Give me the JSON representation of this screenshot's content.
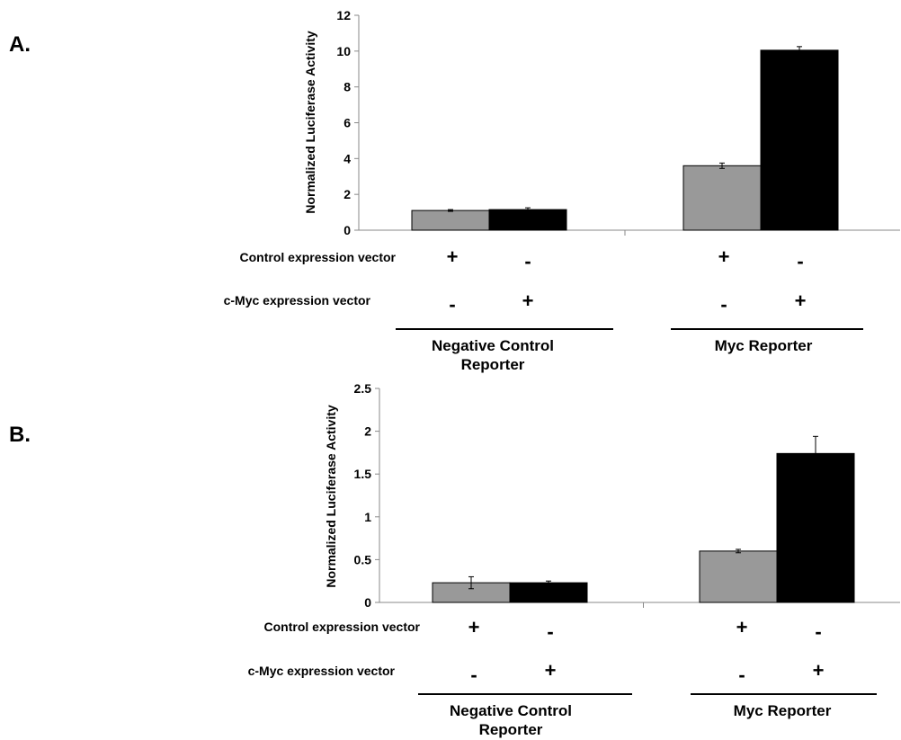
{
  "panels": [
    {
      "label": "A.",
      "ylabel": "Normalized Luciferase Activity",
      "row_labels": [
        "Control expression vector",
        "c-Myc expression vector"
      ],
      "signs": [
        [
          "+",
          "-",
          "+",
          "-"
        ],
        [
          "-",
          "+",
          "-",
          "+"
        ]
      ],
      "group_labels": [
        [
          "Negative Control",
          "Reporter"
        ],
        [
          "Myc Reporter"
        ]
      ]
    },
    {
      "label": "B.",
      "ylabel": "Normalized Luciferase Activity",
      "row_labels": [
        "Control expression vector",
        "c-Myc expression vector"
      ],
      "signs": [
        [
          "+",
          "-",
          "+",
          "-"
        ],
        [
          "-",
          "+",
          "-",
          "+"
        ]
      ],
      "group_labels": [
        [
          "Negative Control",
          "Reporter"
        ],
        [
          "Myc Reporter"
        ]
      ]
    }
  ],
  "colors": {
    "control_bar": "#999999",
    "myc_bar": "#000000"
  },
  "chart_data": [
    {
      "type": "bar",
      "title": "",
      "ylabel": "Normalized Luciferase Activity",
      "ylim": [
        0,
        12
      ],
      "yticks": [
        0,
        2,
        4,
        6,
        8,
        10,
        12
      ],
      "ytick_labels": [
        "0",
        "2",
        "4",
        "6",
        "8",
        "10",
        "12"
      ],
      "categories": [
        "Negative Control Reporter",
        "Myc Reporter"
      ],
      "series": [
        {
          "values": [
            1.1,
            3.6
          ],
          "errors": [
            0.05,
            0.15
          ],
          "color": "#999999"
        },
        {
          "values": [
            1.15,
            10.05
          ],
          "errors": [
            0.1,
            0.2
          ],
          "color": "#000000"
        }
      ],
      "grid": false,
      "legend": "none"
    },
    {
      "type": "bar",
      "title": "",
      "ylabel": "Normalized Luciferase Activity",
      "ylim": [
        0,
        2.5
      ],
      "yticks": [
        0,
        0.5,
        1,
        1.5,
        2,
        2.5
      ],
      "ytick_labels": [
        "0",
        "0.5",
        "1",
        "1.5",
        "2",
        "2.5"
      ],
      "categories": [
        "Negative Control Reporter",
        "Myc Reporter"
      ],
      "series": [
        {
          "values": [
            0.23,
            0.6
          ],
          "errors": [
            0.07,
            0.02
          ],
          "color": "#999999"
        },
        {
          "values": [
            0.23,
            1.74
          ],
          "errors": [
            0.02,
            0.2
          ],
          "color": "#000000"
        }
      ],
      "grid": false,
      "legend": "none"
    }
  ]
}
